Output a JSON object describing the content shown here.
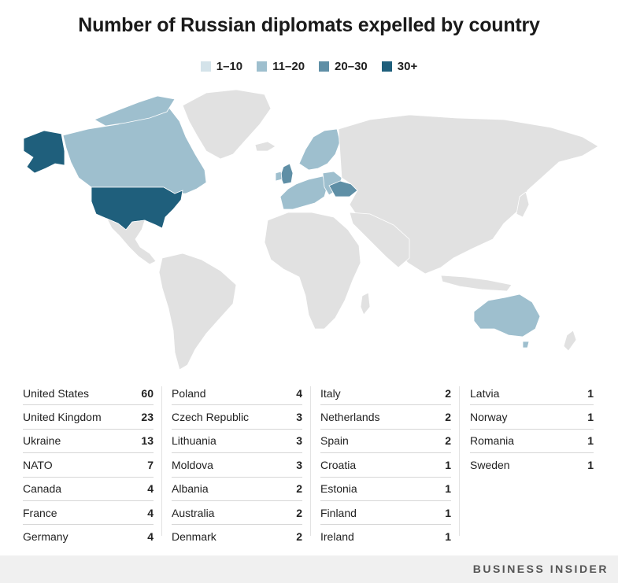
{
  "title": "Number of Russian diplomats expelled by country",
  "legend": [
    {
      "label": "1–10",
      "color": "#d4e3ea"
    },
    {
      "label": "11–20",
      "color": "#9ebfce"
    },
    {
      "label": "20–30",
      "color": "#5f8fa6"
    },
    {
      "label": "30+",
      "color": "#1f5f7c"
    }
  ],
  "map_colors": {
    "no_data": "#e1e1e1",
    "border": "#ffffff"
  },
  "table": {
    "columns": [
      [
        {
          "country": "United States",
          "value": "60"
        },
        {
          "country": "United Kingdom",
          "value": "23"
        },
        {
          "country": "Ukraine",
          "value": "13"
        },
        {
          "country": "NATO",
          "value": "7"
        },
        {
          "country": "Canada",
          "value": "4"
        },
        {
          "country": "France",
          "value": "4"
        },
        {
          "country": "Germany",
          "value": "4"
        }
      ],
      [
        {
          "country": "Poland",
          "value": "4"
        },
        {
          "country": "Czech Republic",
          "value": "3"
        },
        {
          "country": "Lithuania",
          "value": "3"
        },
        {
          "country": "Moldova",
          "value": "3"
        },
        {
          "country": "Albania",
          "value": "2"
        },
        {
          "country": "Australia",
          "value": "2"
        },
        {
          "country": "Denmark",
          "value": "2"
        }
      ],
      [
        {
          "country": "Italy",
          "value": "2"
        },
        {
          "country": "Netherlands",
          "value": "2"
        },
        {
          "country": "Spain",
          "value": "2"
        },
        {
          "country": "Croatia",
          "value": "1"
        },
        {
          "country": "Estonia",
          "value": "1"
        },
        {
          "country": "Finland",
          "value": "1"
        },
        {
          "country": "Ireland",
          "value": "1"
        }
      ],
      [
        {
          "country": "Latvia",
          "value": "1"
        },
        {
          "country": "Norway",
          "value": "1"
        },
        {
          "country": "Romania",
          "value": "1"
        },
        {
          "country": "Sweden",
          "value": "1"
        }
      ]
    ]
  },
  "footer": {
    "brand": "BUSINESS INSIDER"
  }
}
